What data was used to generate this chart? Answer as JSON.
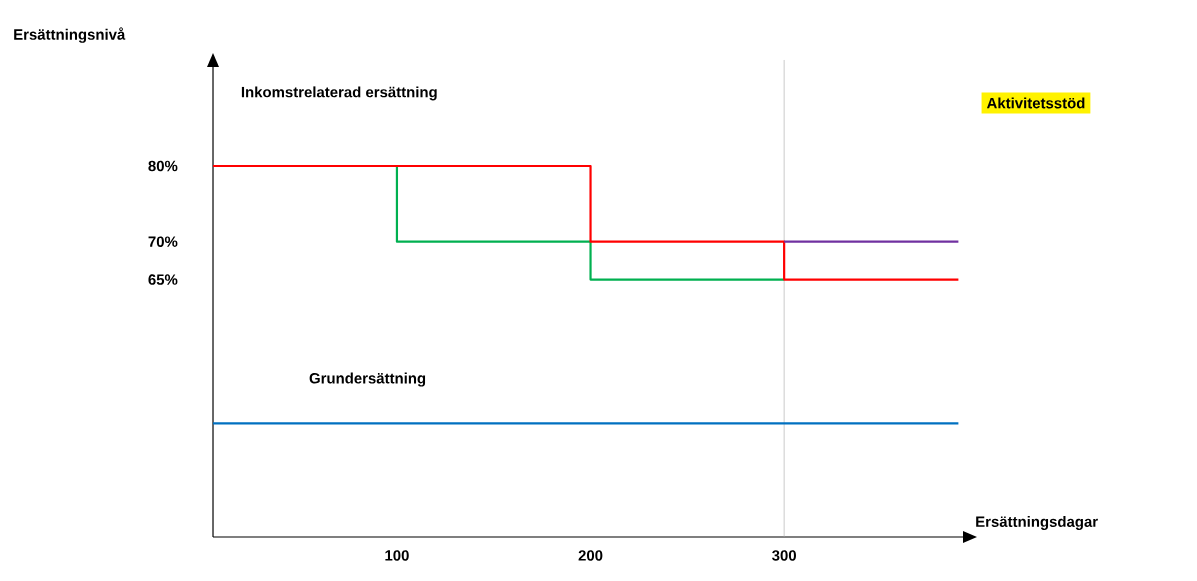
{
  "chart_data": {
    "type": "line",
    "xlabel": "Ersättningsdagar",
    "ylabel": "Ersättningsnivå",
    "xlim": [
      5,
      396
    ],
    "xticks": [
      100,
      200,
      300
    ],
    "ylim": [
      31,
      94
    ],
    "yticks": [
      {
        "value": 65,
        "label": "65%"
      },
      {
        "value": 70,
        "label": "70%"
      },
      {
        "value": 80,
        "label": "80%"
      }
    ],
    "grid": false,
    "marker": "none",
    "line_style": "solid",
    "series": [
      {
        "color": "#00b050",
        "x": [
          5,
          100,
          100,
          200,
          200,
          300
        ],
        "values": [
          80,
          80,
          70,
          70,
          65,
          65
        ]
      },
      {
        "color": "#ff0000",
        "x": [
          5,
          200,
          200,
          300,
          300,
          390
        ],
        "values": [
          80,
          80,
          70,
          70,
          65,
          65
        ]
      },
      {
        "color": "#7030a0",
        "x": [
          300,
          390
        ],
        "values": [
          70,
          70
        ]
      },
      {
        "color": "#0070c0",
        "x": [
          5,
          390
        ],
        "values": [
          46,
          46
        ]
      }
    ],
    "ref_lines": [
      {
        "axis": "x",
        "value": 300,
        "color": "#a6a6a6"
      }
    ],
    "annotations": [
      "Inkomstrelaterad ersättning",
      "Grundersättning",
      "Aktivitetsstöd"
    ]
  }
}
